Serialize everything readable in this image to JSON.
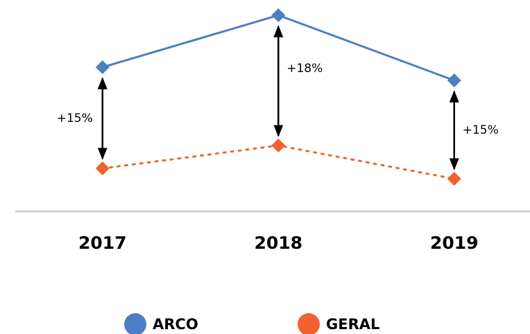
{
  "chart_data": {
    "type": "line",
    "categories": [
      "2017",
      "2018",
      "2019"
    ],
    "series": [
      {
        "name": "ARCO",
        "color": "#4a7fc1",
        "line_style": "solid",
        "values": [
          208,
          283,
          189
        ]
      },
      {
        "name": "GERAL",
        "color": "#f0622f",
        "line_style": "dotted",
        "values": [
          62,
          95,
          47
        ]
      }
    ],
    "ylim": [
      0,
      300
    ],
    "annotations": [
      {
        "category": "2017",
        "label": "+15%"
      },
      {
        "category": "2018",
        "label": "+18%"
      },
      {
        "category": "2019",
        "label": "+15%"
      }
    ],
    "legend": "bottom"
  }
}
